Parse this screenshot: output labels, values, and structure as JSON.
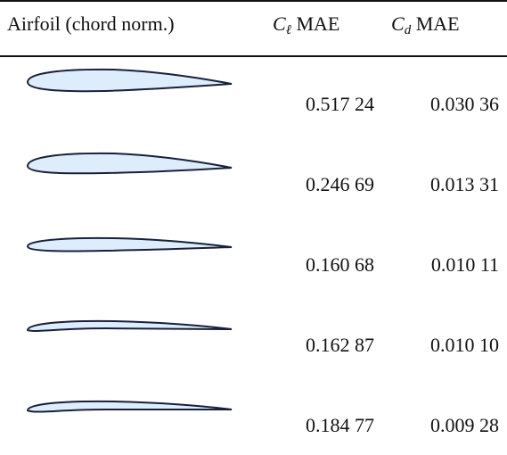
{
  "table": {
    "header": [
      {
        "text": "Airfoil (chord norm.)"
      },
      {
        "symbol": "C",
        "subscript": "ℓ",
        "unit": "MAE"
      },
      {
        "symbol": "C",
        "subscript": "d",
        "unit": "MAE"
      }
    ],
    "rows": [
      [
        "0.517 24",
        "0.030 36"
      ],
      [
        "0.246 69",
        "0.013 31"
      ],
      [
        "0.160 68",
        "0.010 11"
      ],
      [
        "0.162 87",
        "0.010 10"
      ],
      [
        "0.184 77",
        "0.009 28"
      ]
    ]
  }
}
